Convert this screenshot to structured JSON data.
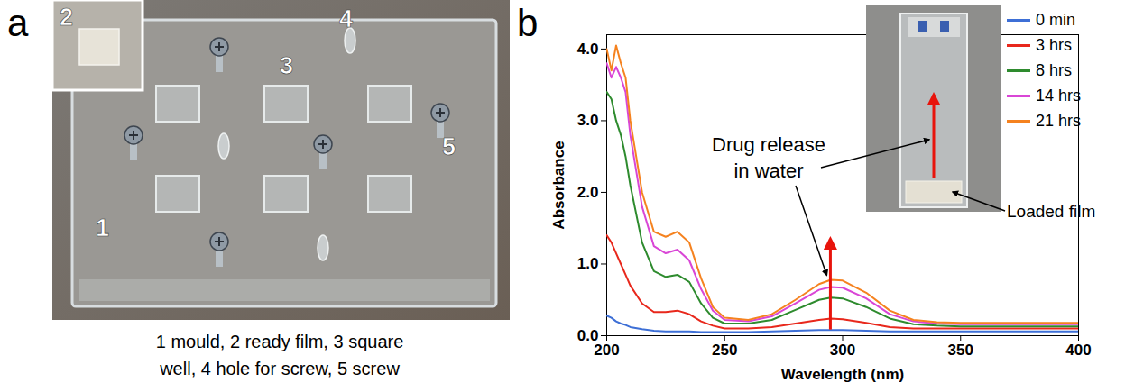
{
  "panel_a": {
    "letter": "a",
    "labels": [
      "1",
      "2",
      "3",
      "4",
      "5"
    ],
    "caption": "1 mould, 2 ready film, 3 square well, 4 hole for screw, 5 screw"
  },
  "chart_data": {
    "letter": "b",
    "type": "line",
    "xlabel": "Wavelength (nm)",
    "ylabel": "Absorbance",
    "x": [
      200,
      202,
      204,
      206,
      208,
      210,
      215,
      220,
      225,
      230,
      235,
      240,
      245,
      250,
      260,
      270,
      280,
      290,
      295,
      300,
      310,
      320,
      330,
      340,
      350,
      360,
      380,
      400
    ],
    "series": [
      {
        "name": "0 min",
        "color": "#3d6fd6",
        "values": [
          0.28,
          0.25,
          0.2,
          0.17,
          0.15,
          0.12,
          0.09,
          0.07,
          0.06,
          0.06,
          0.06,
          0.05,
          0.05,
          0.05,
          0.05,
          0.06,
          0.07,
          0.08,
          0.08,
          0.08,
          0.07,
          0.06,
          0.06,
          0.06,
          0.06,
          0.06,
          0.06,
          0.06
        ]
      },
      {
        "name": "3 hrs",
        "color": "#e8281c",
        "values": [
          1.4,
          1.3,
          1.15,
          1.0,
          0.85,
          0.7,
          0.45,
          0.33,
          0.33,
          0.35,
          0.3,
          0.2,
          0.14,
          0.1,
          0.1,
          0.12,
          0.17,
          0.22,
          0.24,
          0.23,
          0.18,
          0.12,
          0.1,
          0.1,
          0.1,
          0.1,
          0.1,
          0.1
        ]
      },
      {
        "name": "8 hrs",
        "color": "#2e8b2e",
        "values": [
          3.4,
          3.3,
          3.0,
          2.8,
          2.5,
          2.1,
          1.3,
          0.9,
          0.82,
          0.85,
          0.75,
          0.45,
          0.25,
          0.17,
          0.17,
          0.22,
          0.36,
          0.5,
          0.53,
          0.52,
          0.4,
          0.24,
          0.16,
          0.14,
          0.13,
          0.13,
          0.13,
          0.13
        ]
      },
      {
        "name": "14 hrs",
        "color": "#d946d6",
        "values": [
          3.8,
          3.6,
          3.75,
          3.6,
          3.4,
          2.8,
          1.8,
          1.25,
          1.15,
          1.2,
          1.05,
          0.65,
          0.35,
          0.22,
          0.2,
          0.27,
          0.45,
          0.64,
          0.68,
          0.67,
          0.52,
          0.3,
          0.2,
          0.17,
          0.16,
          0.16,
          0.16,
          0.16
        ]
      },
      {
        "name": "21 hrs",
        "color": "#f5821f",
        "values": [
          4.0,
          3.7,
          4.05,
          3.8,
          3.6,
          3.0,
          2.0,
          1.45,
          1.38,
          1.45,
          1.3,
          0.8,
          0.4,
          0.25,
          0.22,
          0.3,
          0.5,
          0.72,
          0.78,
          0.77,
          0.6,
          0.35,
          0.22,
          0.19,
          0.18,
          0.18,
          0.18,
          0.18
        ]
      }
    ],
    "xlim": [
      200,
      400
    ],
    "xticks": [
      200,
      250,
      300,
      350,
      400
    ],
    "ylim": [
      0,
      4.2
    ],
    "yticks": [
      {
        "value": 0,
        "label": "0.0"
      },
      {
        "value": 1,
        "label": "1.0"
      },
      {
        "value": 2,
        "label": "2.0"
      },
      {
        "value": 3,
        "label": "3.0"
      },
      {
        "value": 4,
        "label": "4.0"
      }
    ],
    "legend": "top-right",
    "annotations": [
      "Drug release in water",
      "Loaded film"
    ]
  }
}
